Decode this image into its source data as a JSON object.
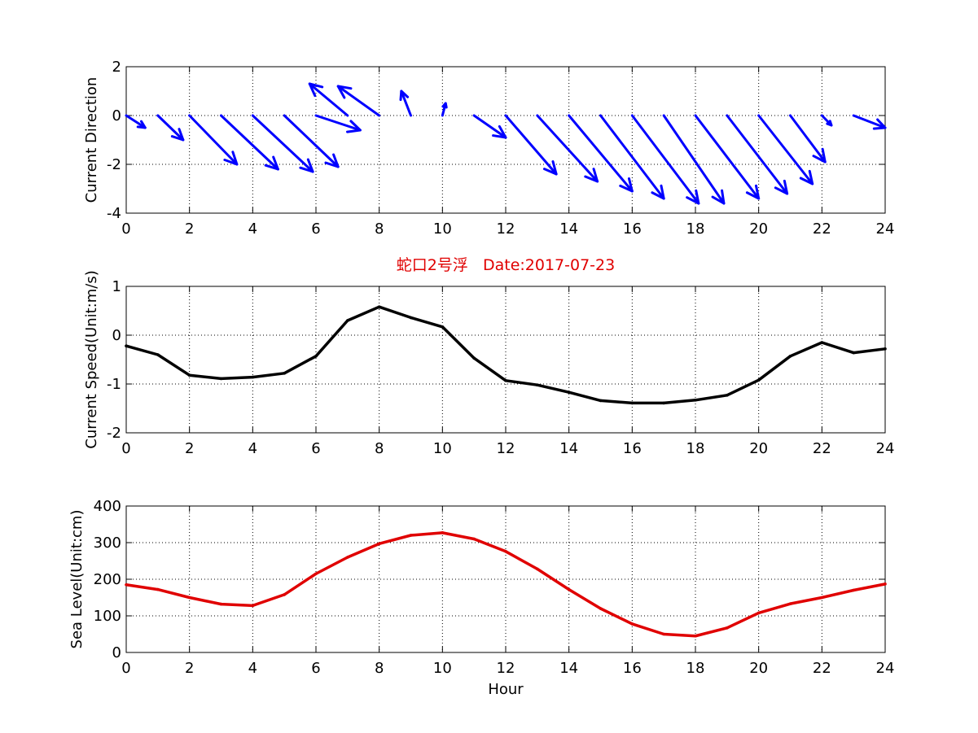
{
  "chart_data": [
    {
      "type": "quiver",
      "title": "",
      "xlabel": "",
      "ylabel": "Current Direction",
      "xlim": [
        0,
        24
      ],
      "ylim": [
        -4,
        2
      ],
      "xticks": [
        0,
        2,
        4,
        6,
        8,
        10,
        12,
        14,
        16,
        18,
        20,
        22,
        24
      ],
      "yticks": [
        -4,
        -2,
        0,
        2
      ],
      "grid": true,
      "color": "#0000ff",
      "x": [
        0,
        1,
        2,
        3,
        4,
        5,
        6,
        7,
        8,
        9,
        10,
        11,
        12,
        13,
        14,
        15,
        16,
        17,
        18,
        19,
        20,
        21,
        22,
        23
      ],
      "u": [
        0.6,
        0.8,
        1.5,
        1.8,
        1.9,
        1.7,
        1.4,
        -1.2,
        -1.3,
        -0.3,
        0.1,
        1.0,
        1.6,
        1.9,
        2.0,
        2.0,
        2.1,
        1.9,
        2.0,
        1.9,
        1.7,
        1.1,
        0.3,
        1.0
      ],
      "v": [
        -0.5,
        -1.0,
        -2.0,
        -2.2,
        -2.3,
        -2.1,
        -0.6,
        1.3,
        1.2,
        1.0,
        0.5,
        -0.9,
        -2.4,
        -2.7,
        -3.1,
        -3.4,
        -3.6,
        -3.6,
        -3.4,
        -3.2,
        -2.8,
        -1.9,
        -0.4,
        -0.5
      ]
    },
    {
      "type": "line",
      "title": "蛇口2号浮   Date:2017-07-23",
      "xlabel": "",
      "ylabel": "Current Speed(Unit:m/s)",
      "xlim": [
        0,
        24
      ],
      "ylim": [
        -2,
        1
      ],
      "xticks": [
        0,
        2,
        4,
        6,
        8,
        10,
        12,
        14,
        16,
        18,
        20,
        22,
        24
      ],
      "yticks": [
        -2,
        -1,
        0,
        1
      ],
      "grid": true,
      "color": "#000000",
      "x": [
        0,
        1,
        2,
        3,
        4,
        5,
        6,
        7,
        8,
        9,
        10,
        11,
        12,
        13,
        14,
        15,
        16,
        17,
        18,
        19,
        20,
        21,
        22,
        23,
        24
      ],
      "y": [
        -0.22,
        -0.4,
        -0.82,
        -0.89,
        -0.86,
        -0.78,
        -0.43,
        0.3,
        0.58,
        0.36,
        0.17,
        -0.47,
        -0.93,
        -1.02,
        -1.17,
        -1.34,
        -1.39,
        -1.39,
        -1.33,
        -1.23,
        -0.92,
        -0.43,
        -0.15,
        -0.36,
        -0.28
      ]
    },
    {
      "type": "line",
      "title": "",
      "xlabel": "Hour",
      "ylabel": "Sea Level(Unit:cm)",
      "xlim": [
        0,
        24
      ],
      "ylim": [
        0,
        400
      ],
      "xticks": [
        0,
        2,
        4,
        6,
        8,
        10,
        12,
        14,
        16,
        18,
        20,
        22,
        24
      ],
      "yticks": [
        0,
        100,
        200,
        300,
        400
      ],
      "grid": true,
      "color": "#e00000",
      "x": [
        0,
        1,
        2,
        3,
        4,
        5,
        6,
        7,
        8,
        9,
        10,
        11,
        12,
        13,
        14,
        15,
        16,
        17,
        18,
        19,
        20,
        21,
        22,
        23,
        24
      ],
      "y": [
        185,
        172,
        150,
        132,
        128,
        158,
        215,
        260,
        297,
        320,
        327,
        310,
        276,
        228,
        172,
        120,
        78,
        50,
        45,
        67,
        108,
        133,
        150,
        170,
        187
      ]
    }
  ]
}
